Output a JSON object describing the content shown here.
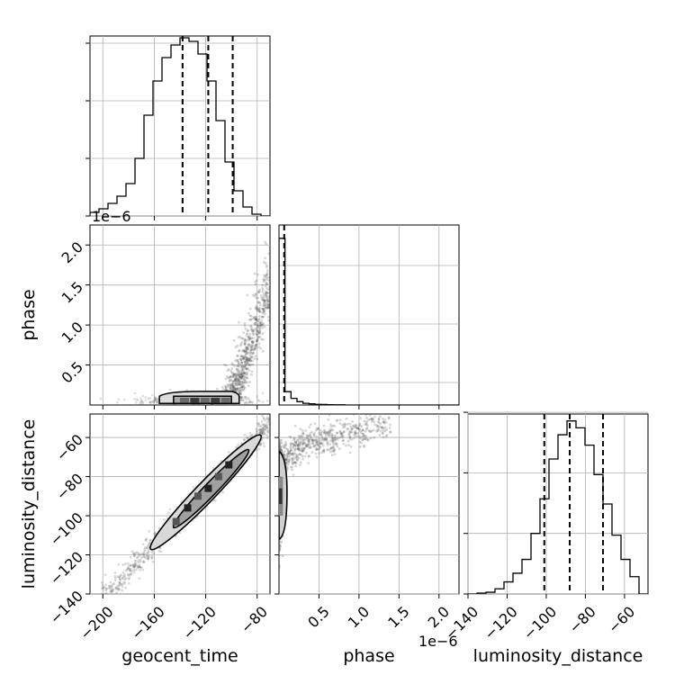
{
  "chart_data": {
    "type": "corner",
    "parameters": [
      "geocent_time",
      "phase",
      "luminosity_distance"
    ],
    "offset_texts": {
      "phase_y": "1e−6",
      "phase_x": "1e−6"
    },
    "axes": {
      "geocent_time": {
        "range": [
          -210,
          -70
        ],
        "ticks": [
          -200,
          -160,
          -120,
          -80
        ],
        "tick_labels": [
          "−200",
          "−160",
          "−120",
          "−80"
        ]
      },
      "phase_y": {
        "range": [
          0.0,
          2.25
        ],
        "ticks": [
          0.5,
          1.0,
          1.5,
          2.0
        ],
        "tick_labels": [
          "0.5",
          "1.0",
          "1.5",
          "2.0"
        ]
      },
      "phase_x": {
        "range": [
          0.0,
          2.25
        ],
        "ticks": [
          0.5,
          1.0,
          1.5,
          2.0
        ],
        "tick_labels": [
          "0.5",
          "1.0",
          "1.5",
          "2.0"
        ]
      },
      "luminosity_distance": {
        "range": [
          -140,
          -48
        ],
        "ticks": [
          -140,
          -120,
          -100,
          -80,
          -60
        ],
        "tick_labels": [
          "−140",
          "−120",
          "−100",
          "−80",
          "−60"
        ]
      }
    },
    "marginals": {
      "geocent_time": {
        "bin_start": -210,
        "bin_width": 7,
        "counts": [
          0.02,
          0.04,
          0.07,
          0.11,
          0.18,
          0.32,
          0.56,
          0.75,
          0.88,
          0.95,
          0.99,
          0.97,
          0.9,
          0.75,
          0.53,
          0.3,
          0.14,
          0.05,
          0.01,
          0.0
        ],
        "ylim": [
          0,
          1.0
        ],
        "y_ticks": [
          0.0,
          0.32,
          0.64,
          0.96
        ],
        "quantiles": [
          -138,
          -118,
          -99
        ]
      },
      "phase": {
        "bin_start": 0.0,
        "bin_width": 0.075,
        "counts": [
          1.0,
          0.08,
          0.04,
          0.02,
          0.01,
          0.007,
          0.004,
          0.003,
          0.002,
          0.001,
          0.001,
          0.0,
          0.0,
          0.0,
          0.0,
          0.0,
          0.0,
          0.0,
          0.0,
          0.0,
          0.0,
          0.0,
          0.0,
          0.0,
          0.0,
          0.0,
          0.0,
          0.0,
          0.0,
          0.0
        ],
        "ylim": [
          0,
          1.08
        ],
        "quantiles": [
          0.065
        ]
      },
      "luminosity_distance": {
        "bin_start": -140,
        "bin_width": 4.6,
        "counts": [
          0.0,
          0.005,
          0.01,
          0.03,
          0.07,
          0.12,
          0.2,
          0.35,
          0.55,
          0.78,
          0.92,
          1.0,
          0.96,
          0.86,
          0.69,
          0.52,
          0.34,
          0.2,
          0.1,
          0.0
        ],
        "ylim": [
          0,
          1.04
        ],
        "y_ticks": [
          0.0,
          0.35,
          0.7,
          1.05
        ],
        "quantiles": [
          -101,
          -88,
          -71
        ]
      }
    },
    "joint_geocent_phase": {
      "core": {
        "x_range": [
          -155,
          -95
        ],
        "y": 0.07
      },
      "tail_points_approx": [
        [
          -100,
          0.15
        ],
        [
          -98,
          0.2
        ],
        [
          -96,
          0.25
        ],
        [
          -94,
          0.3
        ],
        [
          -92,
          0.35
        ],
        [
          -90,
          0.4
        ],
        [
          -88,
          0.45
        ],
        [
          -86,
          0.5
        ],
        [
          -85,
          0.55
        ],
        [
          -84,
          0.6
        ],
        [
          -83,
          0.65
        ],
        [
          -82,
          0.7
        ],
        [
          -81,
          0.75
        ],
        [
          -80,
          0.8
        ],
        [
          -79,
          0.85
        ],
        [
          -78,
          0.9
        ],
        [
          -77,
          1.0
        ],
        [
          -76,
          1.1
        ],
        [
          -75,
          1.2
        ],
        [
          -74,
          1.3
        ],
        [
          -73,
          1.4
        ]
      ]
    },
    "joint_geocent_distance": {
      "relation": "luminosity_distance ≈ 0.68 · geocent_time − 6",
      "x_range": [
        -205,
        -70
      ],
      "y_range": [
        -138,
        -50
      ]
    },
    "joint_phase_distance": {
      "core": {
        "x": 0.05,
        "y_range": [
          -110,
          -70
        ]
      },
      "spread_range": {
        "x": [
          0.0,
          1.4
        ],
        "y": [
          -80,
          -50
        ]
      }
    }
  }
}
